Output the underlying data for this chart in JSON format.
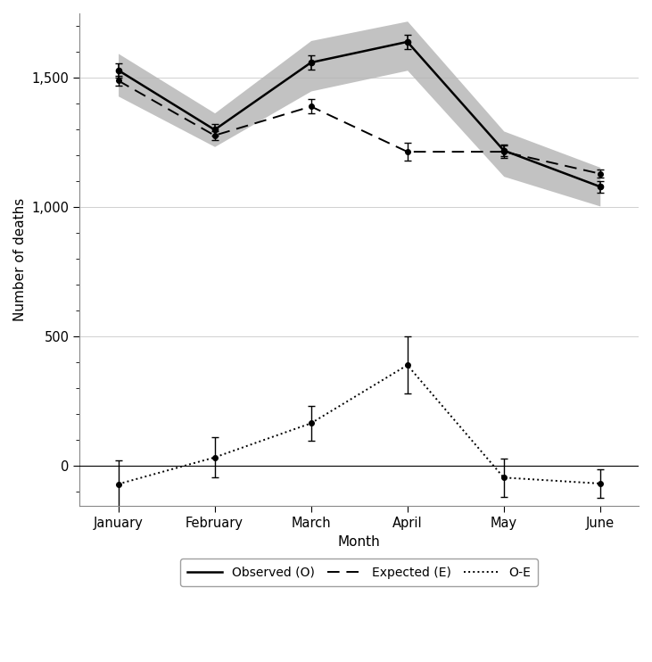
{
  "months": [
    "January",
    "February",
    "March",
    "April",
    "May",
    "June"
  ],
  "x": [
    0,
    1,
    2,
    3,
    4,
    5
  ],
  "observed": [
    1530,
    1300,
    1560,
    1640,
    1220,
    1080
  ],
  "observed_err": [
    28,
    22,
    28,
    28,
    22,
    22
  ],
  "observed_ci_low": [
    1430,
    1235,
    1450,
    1530,
    1120,
    1005
  ],
  "observed_ci_high": [
    1595,
    1365,
    1645,
    1720,
    1295,
    1155
  ],
  "expected": [
    1490,
    1278,
    1390,
    1215,
    1215,
    1130
  ],
  "expected_err": [
    18,
    18,
    28,
    35,
    25,
    15
  ],
  "oe": [
    -70,
    33,
    165,
    390,
    -45,
    -68
  ],
  "oe_err": [
    90,
    78,
    68,
    110,
    75,
    55
  ],
  "ylim_low": -155,
  "ylim_high": 1750,
  "yticks": [
    0,
    500,
    1000,
    1500
  ],
  "yticklabels": [
    "0",
    "500",
    "1,000",
    "1,500"
  ],
  "ylabel": "Number of deaths",
  "xlabel": "Month",
  "bg_color": "#ffffff",
  "line_color": "#000000",
  "ci_band_color": "#b3b3b3",
  "grid_color": "#d0d0d0",
  "axis_fontsize": 11,
  "tick_fontsize": 10.5,
  "legend_fontsize": 10
}
